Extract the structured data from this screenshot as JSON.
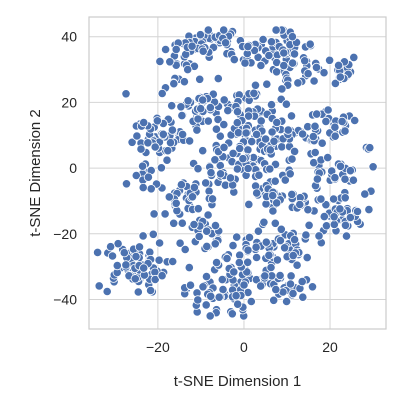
{
  "chart_data": {
    "type": "scatter",
    "title": "",
    "xlabel": "t-SNE Dimension 1",
    "ylabel": "t-SNE Dimension 2",
    "xlim": [
      -36,
      33
    ],
    "ylim": [
      -49,
      46
    ],
    "xticks": [
      -20,
      0,
      20
    ],
    "yticks": [
      -40,
      -20,
      0,
      20,
      40
    ],
    "grid": true,
    "point_color": "#4c72b0",
    "clusters": [
      {
        "cx": -7,
        "cy": 39,
        "sx": 3.5,
        "sy": 2,
        "n": 35
      },
      {
        "cx": 4,
        "cy": 35,
        "sx": 4,
        "sy": 2.5,
        "n": 35
      },
      {
        "cx": 11,
        "cy": 33,
        "sx": 3,
        "sy": 5,
        "n": 45
      },
      {
        "cx": 21,
        "cy": 30,
        "sx": 3,
        "sy": 2.5,
        "n": 22
      },
      {
        "cx": -13,
        "cy": 35,
        "sx": 3,
        "sy": 3,
        "n": 25
      },
      {
        "cx": -16,
        "cy": 27,
        "sx": 2,
        "sy": 2,
        "n": 8
      },
      {
        "cx": -10,
        "cy": 18,
        "sx": 5,
        "sy": 4,
        "n": 55
      },
      {
        "cx": 2,
        "cy": 20,
        "sx": 4,
        "sy": 3,
        "n": 25
      },
      {
        "cx": -18,
        "cy": 9,
        "sx": 4,
        "sy": 3,
        "n": 35
      },
      {
        "cx": -22,
        "cy": 10,
        "sx": 2,
        "sy": 2,
        "n": 12
      },
      {
        "cx": 0,
        "cy": 8,
        "sx": 4,
        "sy": 4,
        "n": 45
      },
      {
        "cx": 11,
        "cy": 11,
        "sx": 5,
        "sy": 4,
        "n": 45
      },
      {
        "cx": 21,
        "cy": 12,
        "sx": 3,
        "sy": 3,
        "n": 22
      },
      {
        "cx": 28,
        "cy": 6,
        "sx": 1,
        "sy": 0.5,
        "n": 3
      },
      {
        "cx": -22,
        "cy": -3,
        "sx": 2,
        "sy": 2,
        "n": 12
      },
      {
        "cx": -12,
        "cy": -10,
        "sx": 4,
        "sy": 4,
        "n": 45
      },
      {
        "cx": -5,
        "cy": 2,
        "sx": 3,
        "sy": 3,
        "n": 20
      },
      {
        "cx": 4,
        "cy": 1,
        "sx": 5,
        "sy": 3,
        "n": 35
      },
      {
        "cx": 20,
        "cy": -2,
        "sx": 4,
        "sy": 3,
        "n": 30
      },
      {
        "cx": 22,
        "cy": -14,
        "sx": 3,
        "sy": 3,
        "n": 35
      },
      {
        "cx": 13,
        "cy": -12,
        "sx": 3,
        "sy": 3,
        "n": 20
      },
      {
        "cx": 6,
        "cy": -8,
        "sx": 3,
        "sy": 3,
        "n": 20
      },
      {
        "cx": -8,
        "cy": -20,
        "sx": 4,
        "sy": 3,
        "n": 25
      },
      {
        "cx": 5,
        "cy": -24,
        "sx": 4,
        "sy": 4,
        "n": 40
      },
      {
        "cx": 12,
        "cy": -23,
        "sx": 2.5,
        "sy": 3,
        "n": 20
      },
      {
        "cx": -26,
        "cy": -30,
        "sx": 4,
        "sy": 4,
        "n": 70
      },
      {
        "cx": -6,
        "cy": -38,
        "sx": 4,
        "sy": 4,
        "n": 55
      },
      {
        "cx": 9,
        "cy": -36,
        "sx": 4,
        "sy": 3,
        "n": 40
      },
      {
        "cx": -2,
        "cy": -30,
        "sx": 3,
        "sy": 3,
        "n": 15
      }
    ]
  }
}
